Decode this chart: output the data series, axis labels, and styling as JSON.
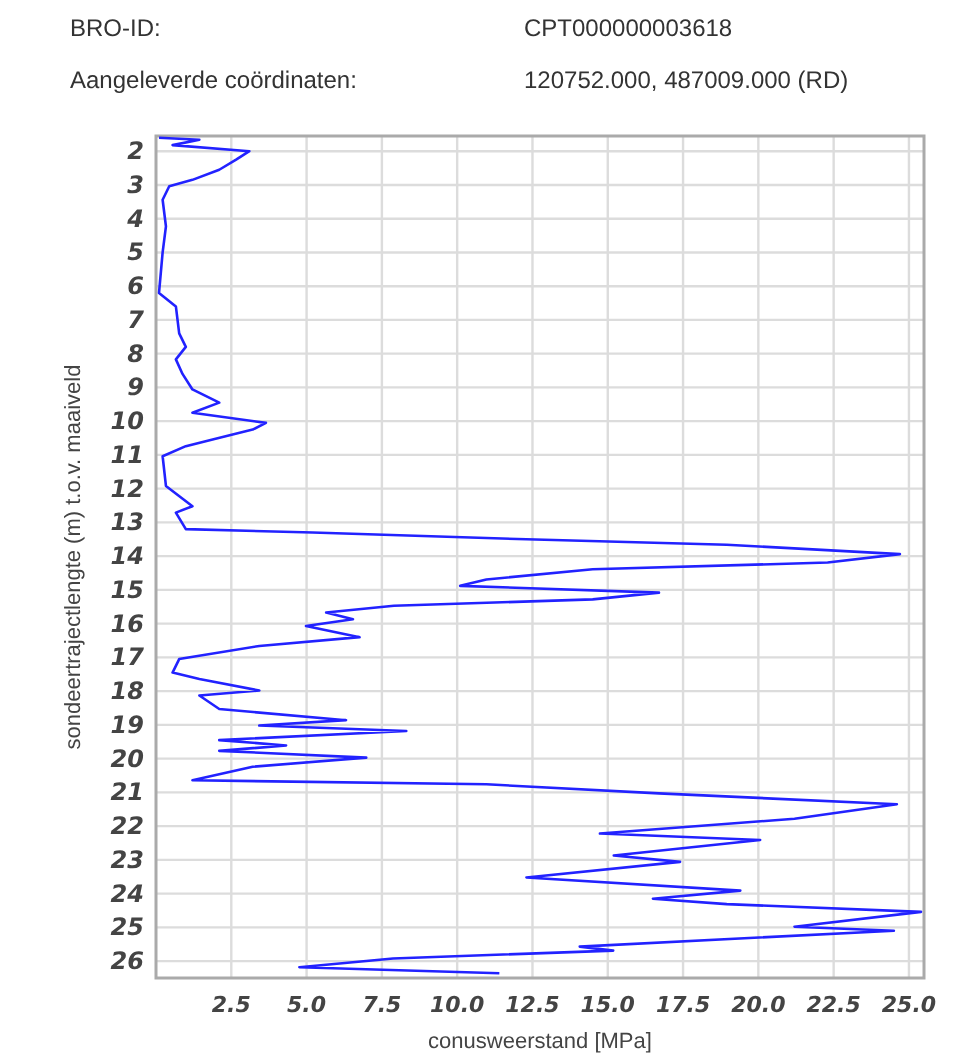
{
  "chart_data": {
    "type": "line",
    "xlabel": "conusweerstand [MPa]",
    "ylabel": "sondeertrajectlengte (m) t.o.v. maaiveld",
    "annotations": [
      "BRO-ID:",
      "CPT000000003618",
      "Aangeleverde coördinaten:",
      "120752.000, 487009.000 (RD)"
    ],
    "xlim": [
      0,
      25.5
    ],
    "ylim": [
      26.5,
      1.55
    ],
    "xticks": [
      {
        "value": 2.5,
        "label": "2.5"
      },
      {
        "value": 5,
        "label": "5.0"
      },
      {
        "value": 7.5,
        "label": "7.5"
      },
      {
        "value": 10,
        "label": "10.0"
      },
      {
        "value": 12.5,
        "label": "12.5"
      },
      {
        "value": 15,
        "label": "15.0"
      },
      {
        "value": 17.5,
        "label": "17.5"
      },
      {
        "value": 20,
        "label": "20.0"
      },
      {
        "value": 22.5,
        "label": "22.5"
      },
      {
        "value": 25,
        "label": "25.0"
      }
    ],
    "yticks": [
      2,
      3,
      4,
      5,
      6,
      7,
      8,
      9,
      10,
      11,
      12,
      13,
      14,
      15,
      16,
      17,
      18,
      19,
      20,
      21,
      22,
      23,
      24,
      25,
      26
    ],
    "grid": true,
    "marker": "none",
    "line_style": "solid",
    "series": [
      {
        "color": "#2222ff",
        "x": [
          0.1,
          1.44,
          0.55,
          3.1,
          2.66,
          2.1,
          1.21,
          0.44,
          0.22,
          0.33,
          0.22,
          0.1,
          0.66,
          0.77,
          0.99,
          0.66,
          0.88,
          1.21,
          2.1,
          1.21,
          3.65,
          3.21,
          1.88,
          0.99,
          0.22,
          0.33,
          1.21,
          0.66,
          0.99,
          5.2,
          12.3,
          18.95,
          24.7,
          22.3,
          14.5,
          10.97,
          10.1,
          16.7,
          14.5,
          7.9,
          5.65,
          6.54,
          4.98,
          6.76,
          3.43,
          0.77,
          0.55,
          1.44,
          3.43,
          1.44,
          2.1,
          6.31,
          3.43,
          8.31,
          2.1,
          4.32,
          2.1,
          6.98,
          3.21,
          1.21,
          10.97,
          16.7,
          24.6,
          21.2,
          14.74,
          20.06,
          15.2,
          17.4,
          12.3,
          19.4,
          16.5,
          18.95,
          25.4,
          21.2,
          24.5,
          14.07,
          15.18,
          7.87,
          4.76,
          11.4
        ],
        "values": [
          1.6,
          1.66,
          1.82,
          2.0,
          2.25,
          2.55,
          2.85,
          3.04,
          3.44,
          4.23,
          5.0,
          6.2,
          6.6,
          7.4,
          7.8,
          8.17,
          8.6,
          9.06,
          9.45,
          9.75,
          10.05,
          10.25,
          10.54,
          10.74,
          11.04,
          11.92,
          12.52,
          12.71,
          13.2,
          13.3,
          13.5,
          13.66,
          13.94,
          14.19,
          14.39,
          14.69,
          14.88,
          15.08,
          15.28,
          15.47,
          15.67,
          15.87,
          16.07,
          16.4,
          16.66,
          17.05,
          17.45,
          17.64,
          17.98,
          18.13,
          18.53,
          18.86,
          19.02,
          19.18,
          19.45,
          19.61,
          19.77,
          19.97,
          20.24,
          20.64,
          20.76,
          21.03,
          21.35,
          21.78,
          22.22,
          22.41,
          22.87,
          23.06,
          23.52,
          23.91,
          24.15,
          24.31,
          24.54,
          24.98,
          25.1,
          25.57,
          25.69,
          25.92,
          26.18,
          26.36
        ]
      }
    ]
  }
}
